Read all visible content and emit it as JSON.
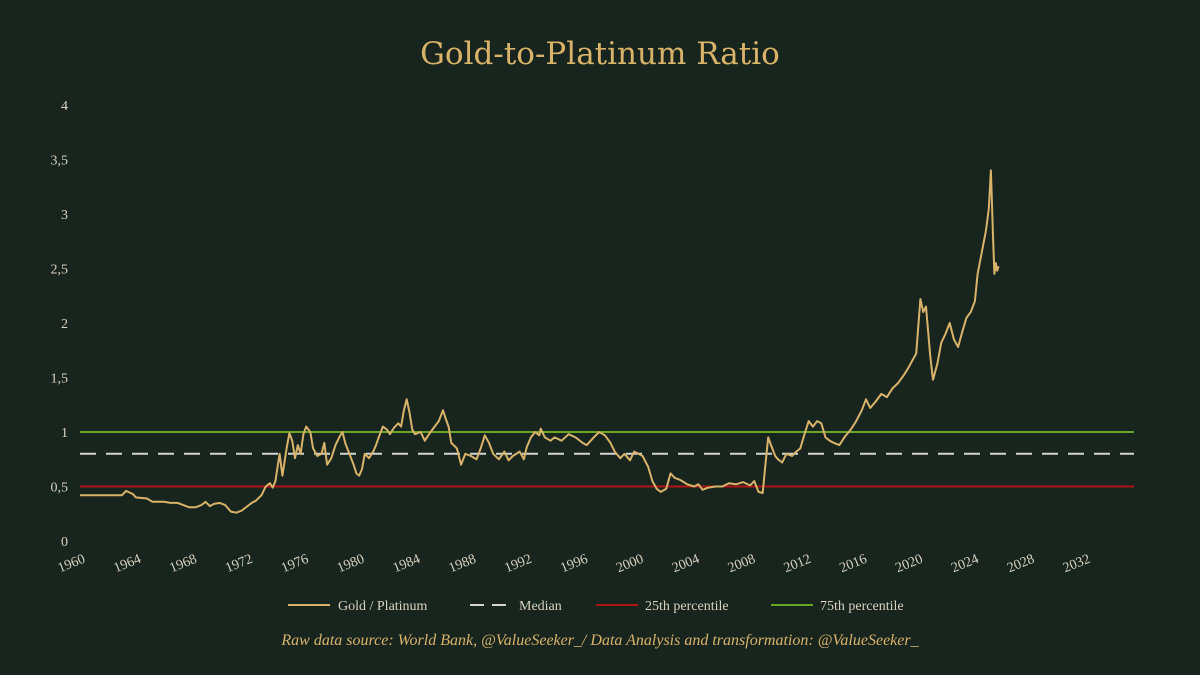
{
  "colors": {
    "background": "#17251e",
    "title": "#d9b36a",
    "text": "#d9d2c1",
    "caption": "#d9b36a",
    "gold_line": "#d9b36a",
    "median_line": "#d3d3d3",
    "p25_line": "#b01515",
    "p75_line": "#6aa523"
  },
  "caption": "Raw data source: World Bank, @ValueSeeker_/ Data Analysis and transformation: @ValueSeeker_",
  "chart_data": {
    "type": "line",
    "title": "Gold-to-Platinum Ratio",
    "xlabel": "",
    "ylabel": "",
    "xlim": [
      1960,
      2035.5
    ],
    "ylim": [
      0,
      4
    ],
    "x_ticks": [
      1960,
      1964,
      1968,
      1972,
      1976,
      1980,
      1984,
      1988,
      1992,
      1996,
      2000,
      2004,
      2008,
      2012,
      2016,
      2020,
      2024,
      2028,
      2032
    ],
    "x_tick_labels": [
      "1960",
      "1964",
      "1968",
      "1972",
      "1976",
      "1980",
      "1984",
      "1988",
      "1992",
      "1996",
      "2000",
      "2004",
      "2008",
      "2012",
      "2016",
      "2020",
      "2024",
      "2028",
      "2032"
    ],
    "y_ticks": [
      0,
      0.5,
      1,
      1.5,
      2,
      2.5,
      3,
      3.5,
      4
    ],
    "y_tick_labels": [
      "0",
      "0,5",
      "1",
      "1,5",
      "2",
      "2,5",
      "3",
      "3,5",
      "4"
    ],
    "legend_position": "bottom-center",
    "reference_lines": [
      {
        "name": "Median",
        "value": 0.8,
        "style": "dashed"
      },
      {
        "name": "25th percentile",
        "value": 0.5,
        "style": "solid"
      },
      {
        "name": "75th percentile",
        "value": 1.0,
        "style": "solid"
      }
    ],
    "series": [
      {
        "name": "Gold / Platinum",
        "points": [
          [
            1960.0,
            0.42
          ],
          [
            1963.0,
            0.42
          ],
          [
            1963.3,
            0.46
          ],
          [
            1963.8,
            0.43
          ],
          [
            1964.0,
            0.4
          ],
          [
            1964.8,
            0.39
          ],
          [
            1965.2,
            0.36
          ],
          [
            1966.0,
            0.36
          ],
          [
            1966.5,
            0.35
          ],
          [
            1967.0,
            0.35
          ],
          [
            1967.8,
            0.31
          ],
          [
            1968.3,
            0.31
          ],
          [
            1968.7,
            0.33
          ],
          [
            1969.0,
            0.36
          ],
          [
            1969.3,
            0.32
          ],
          [
            1969.6,
            0.34
          ],
          [
            1970.0,
            0.35
          ],
          [
            1970.4,
            0.33
          ],
          [
            1970.8,
            0.27
          ],
          [
            1971.2,
            0.26
          ],
          [
            1971.6,
            0.28
          ],
          [
            1972.0,
            0.32
          ],
          [
            1972.3,
            0.35
          ],
          [
            1972.6,
            0.37
          ],
          [
            1973.0,
            0.42
          ],
          [
            1973.3,
            0.5
          ],
          [
            1973.6,
            0.53
          ],
          [
            1973.8,
            0.49
          ],
          [
            1974.0,
            0.55
          ],
          [
            1974.3,
            0.8
          ],
          [
            1974.5,
            0.6
          ],
          [
            1974.8,
            0.85
          ],
          [
            1975.0,
            0.99
          ],
          [
            1975.2,
            0.92
          ],
          [
            1975.4,
            0.76
          ],
          [
            1975.6,
            0.88
          ],
          [
            1975.8,
            0.8
          ],
          [
            1976.0,
            0.98
          ],
          [
            1976.2,
            1.05
          ],
          [
            1976.5,
            1.0
          ],
          [
            1976.7,
            0.85
          ],
          [
            1977.0,
            0.78
          ],
          [
            1977.3,
            0.8
          ],
          [
            1977.5,
            0.9
          ],
          [
            1977.7,
            0.7
          ],
          [
            1978.0,
            0.76
          ],
          [
            1978.3,
            0.88
          ],
          [
            1978.6,
            0.96
          ],
          [
            1978.8,
            1.0
          ],
          [
            1979.0,
            0.9
          ],
          [
            1979.3,
            0.8
          ],
          [
            1979.6,
            0.7
          ],
          [
            1979.8,
            0.62
          ],
          [
            1980.0,
            0.6
          ],
          [
            1980.2,
            0.66
          ],
          [
            1980.4,
            0.8
          ],
          [
            1980.7,
            0.76
          ],
          [
            1981.0,
            0.82
          ],
          [
            1981.2,
            0.88
          ],
          [
            1981.4,
            0.95
          ],
          [
            1981.7,
            1.05
          ],
          [
            1982.0,
            1.02
          ],
          [
            1982.2,
            0.98
          ],
          [
            1982.5,
            1.04
          ],
          [
            1982.8,
            1.08
          ],
          [
            1983.0,
            1.05
          ],
          [
            1983.2,
            1.2
          ],
          [
            1983.4,
            1.3
          ],
          [
            1983.6,
            1.18
          ],
          [
            1983.8,
            1.02
          ],
          [
            1984.0,
            0.98
          ],
          [
            1984.4,
            1.0
          ],
          [
            1984.7,
            0.92
          ],
          [
            1985.0,
            0.98
          ],
          [
            1985.4,
            1.05
          ],
          [
            1985.7,
            1.1
          ],
          [
            1986.0,
            1.2
          ],
          [
            1986.2,
            1.12
          ],
          [
            1986.4,
            1.05
          ],
          [
            1986.6,
            0.9
          ],
          [
            1987.0,
            0.85
          ],
          [
            1987.3,
            0.7
          ],
          [
            1987.6,
            0.8
          ],
          [
            1988.0,
            0.78
          ],
          [
            1988.4,
            0.75
          ],
          [
            1988.7,
            0.85
          ],
          [
            1989.0,
            0.97
          ],
          [
            1989.3,
            0.9
          ],
          [
            1989.6,
            0.8
          ],
          [
            1990.0,
            0.75
          ],
          [
            1990.4,
            0.82
          ],
          [
            1990.7,
            0.74
          ],
          [
            1991.0,
            0.78
          ],
          [
            1991.5,
            0.82
          ],
          [
            1991.8,
            0.75
          ],
          [
            1992.0,
            0.86
          ],
          [
            1992.3,
            0.95
          ],
          [
            1992.6,
            1.0
          ],
          [
            1992.9,
            0.97
          ],
          [
            1993.0,
            1.03
          ],
          [
            1993.3,
            0.95
          ],
          [
            1993.7,
            0.92
          ],
          [
            1994.0,
            0.95
          ],
          [
            1994.5,
            0.92
          ],
          [
            1995.0,
            0.98
          ],
          [
            1995.5,
            0.95
          ],
          [
            1996.0,
            0.9
          ],
          [
            1996.3,
            0.88
          ],
          [
            1996.8,
            0.95
          ],
          [
            1997.2,
            1.0
          ],
          [
            1997.6,
            0.97
          ],
          [
            1998.0,
            0.9
          ],
          [
            1998.3,
            0.82
          ],
          [
            1998.7,
            0.76
          ],
          [
            1999.0,
            0.8
          ],
          [
            1999.4,
            0.74
          ],
          [
            1999.7,
            0.82
          ],
          [
            2000.0,
            0.8
          ],
          [
            2000.3,
            0.78
          ],
          [
            2000.7,
            0.68
          ],
          [
            2001.0,
            0.55
          ],
          [
            2001.3,
            0.48
          ],
          [
            2001.6,
            0.45
          ],
          [
            2002.0,
            0.48
          ],
          [
            2002.3,
            0.62
          ],
          [
            2002.6,
            0.58
          ],
          [
            2003.0,
            0.56
          ],
          [
            2003.5,
            0.52
          ],
          [
            2004.0,
            0.5
          ],
          [
            2004.3,
            0.52
          ],
          [
            2004.6,
            0.47
          ],
          [
            2005.0,
            0.49
          ],
          [
            2005.5,
            0.5
          ],
          [
            2006.0,
            0.5
          ],
          [
            2006.5,
            0.53
          ],
          [
            2007.0,
            0.52
          ],
          [
            2007.5,
            0.54
          ],
          [
            2008.0,
            0.51
          ],
          [
            2008.3,
            0.55
          ],
          [
            2008.6,
            0.45
          ],
          [
            2008.9,
            0.44
          ],
          [
            2009.1,
            0.7
          ],
          [
            2009.3,
            0.95
          ],
          [
            2009.5,
            0.88
          ],
          [
            2009.8,
            0.78
          ],
          [
            2010.0,
            0.75
          ],
          [
            2010.3,
            0.72
          ],
          [
            2010.6,
            0.8
          ],
          [
            2011.0,
            0.78
          ],
          [
            2011.3,
            0.82
          ],
          [
            2011.6,
            0.85
          ],
          [
            2011.9,
            0.98
          ],
          [
            2012.2,
            1.1
          ],
          [
            2012.5,
            1.05
          ],
          [
            2012.8,
            1.1
          ],
          [
            2013.1,
            1.08
          ],
          [
            2013.4,
            0.95
          ],
          [
            2013.7,
            0.92
          ],
          [
            2014.0,
            0.9
          ],
          [
            2014.4,
            0.88
          ],
          [
            2014.8,
            0.96
          ],
          [
            2015.2,
            1.02
          ],
          [
            2015.6,
            1.1
          ],
          [
            2016.0,
            1.2
          ],
          [
            2016.3,
            1.3
          ],
          [
            2016.6,
            1.22
          ],
          [
            2017.0,
            1.28
          ],
          [
            2017.4,
            1.35
          ],
          [
            2017.8,
            1.32
          ],
          [
            2018.2,
            1.4
          ],
          [
            2018.6,
            1.45
          ],
          [
            2019.0,
            1.52
          ],
          [
            2019.3,
            1.58
          ],
          [
            2019.6,
            1.65
          ],
          [
            2019.9,
            1.72
          ],
          [
            2020.2,
            2.22
          ],
          [
            2020.4,
            2.1
          ],
          [
            2020.6,
            2.15
          ],
          [
            2020.9,
            1.7
          ],
          [
            2021.1,
            1.48
          ],
          [
            2021.4,
            1.62
          ],
          [
            2021.7,
            1.82
          ],
          [
            2022.0,
            1.9
          ],
          [
            2022.3,
            2.0
          ],
          [
            2022.6,
            1.85
          ],
          [
            2022.9,
            1.78
          ],
          [
            2023.2,
            1.92
          ],
          [
            2023.5,
            2.05
          ],
          [
            2023.8,
            2.1
          ],
          [
            2024.1,
            2.2
          ],
          [
            2024.3,
            2.45
          ],
          [
            2024.6,
            2.65
          ],
          [
            2024.9,
            2.85
          ],
          [
            2025.1,
            3.05
          ],
          [
            2025.25,
            3.4
          ],
          [
            2025.4,
            2.8
          ],
          [
            2025.5,
            2.45
          ],
          [
            2025.6,
            2.55
          ],
          [
            2025.7,
            2.48
          ],
          [
            2025.8,
            2.52
          ]
        ]
      }
    ]
  }
}
